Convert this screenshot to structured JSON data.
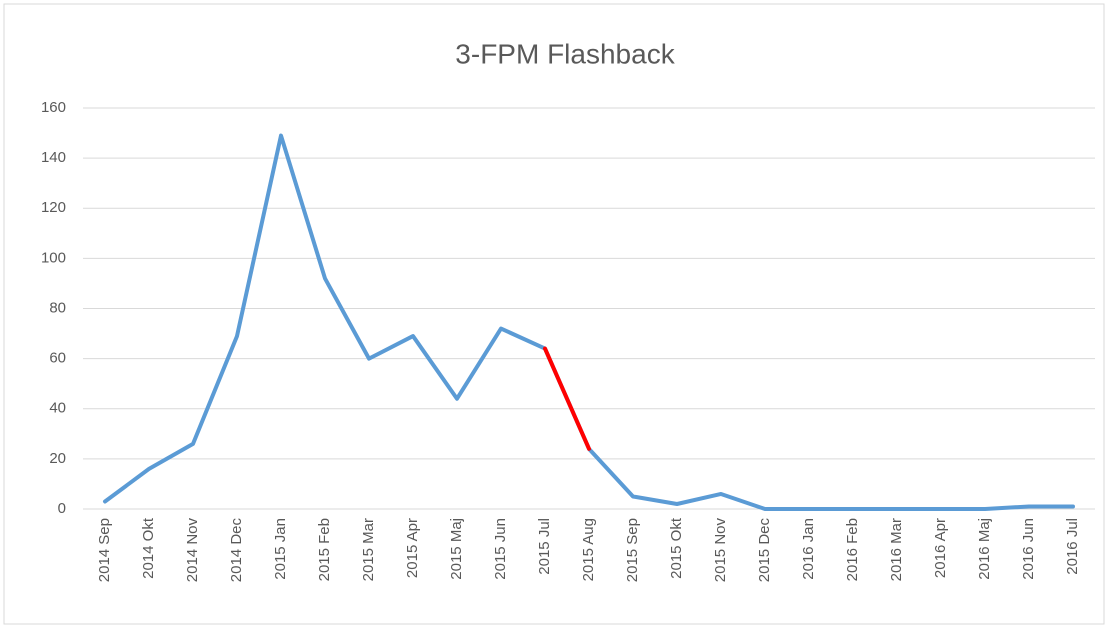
{
  "chart_data": {
    "type": "line",
    "title": "3-FPM Flashback",
    "categories": [
      "2014 Sep",
      "2014 Okt",
      "2014 Nov",
      "2014 Dec",
      "2015 Jan",
      "2015 Feb",
      "2015 Mar",
      "2015 Apr",
      "2015 Maj",
      "2015 Jun",
      "2015 Jul",
      "2015 Aug",
      "2015 Sep",
      "2015 Okt",
      "2015 Nov",
      "2015 Dec",
      "2016 Jan",
      "2016 Feb",
      "2016 Mar",
      "2016 Apr",
      "2016 Maj",
      "2016 Jun",
      "2016 Jul"
    ],
    "series": [
      {
        "color": "#5b9bd5",
        "values": [
          3,
          16,
          26,
          69,
          149,
          92,
          60,
          69,
          44,
          72,
          64,
          24,
          5,
          2,
          6,
          0,
          0,
          0,
          0,
          0,
          0,
          1,
          1
        ]
      },
      {
        "color": "#ff0000",
        "values": [
          null,
          null,
          null,
          null,
          null,
          null,
          null,
          null,
          null,
          null,
          64,
          24,
          null,
          null,
          null,
          null,
          null,
          null,
          null,
          null,
          null,
          null,
          null
        ]
      }
    ],
    "ylim": [
      0,
      160
    ],
    "yticks": [
      0,
      20,
      40,
      60,
      80,
      100,
      120,
      140,
      160
    ],
    "grid": true
  }
}
